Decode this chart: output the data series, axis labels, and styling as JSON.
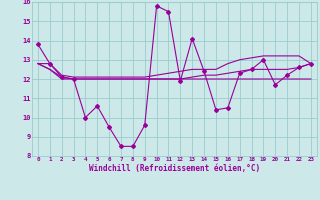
{
  "xlabel": "Windchill (Refroidissement éolien,°C)",
  "background_color": "#cce8e8",
  "grid_color": "#99cccc",
  "line_color": "#990099",
  "x": [
    0,
    1,
    2,
    3,
    4,
    5,
    6,
    7,
    8,
    9,
    10,
    11,
    12,
    13,
    14,
    15,
    16,
    17,
    18,
    19,
    20,
    21,
    22,
    23
  ],
  "y_main": [
    13.8,
    12.8,
    12.1,
    12.0,
    10.0,
    10.6,
    9.5,
    8.5,
    8.5,
    9.6,
    15.8,
    15.5,
    11.9,
    14.1,
    12.4,
    10.4,
    10.5,
    12.3,
    12.5,
    13.0,
    11.7,
    12.2,
    12.6,
    12.8
  ],
  "y_line1": [
    12.8,
    12.8,
    12.2,
    12.1,
    12.1,
    12.1,
    12.1,
    12.1,
    12.1,
    12.1,
    12.2,
    12.3,
    12.4,
    12.5,
    12.5,
    12.5,
    12.8,
    13.0,
    13.1,
    13.2,
    13.2,
    13.2,
    13.2,
    12.8
  ],
  "y_line2": [
    12.8,
    12.5,
    12.1,
    12.0,
    12.0,
    12.0,
    12.0,
    12.0,
    12.0,
    12.0,
    12.0,
    12.0,
    12.0,
    12.1,
    12.2,
    12.2,
    12.3,
    12.4,
    12.5,
    12.5,
    12.5,
    12.5,
    12.6,
    12.8
  ],
  "y_line3": [
    12.8,
    12.5,
    12.0,
    12.0,
    12.0,
    12.0,
    12.0,
    12.0,
    12.0,
    12.0,
    12.0,
    12.0,
    12.0,
    12.0,
    12.0,
    12.0,
    12.0,
    12.0,
    12.0,
    12.0,
    12.0,
    12.0,
    12.0,
    12.0
  ],
  "ylim": [
    8,
    16
  ],
  "xlim": [
    -0.5,
    23.5
  ],
  "yticks": [
    8,
    9,
    10,
    11,
    12,
    13,
    14,
    15,
    16
  ],
  "xticks": [
    0,
    1,
    2,
    3,
    4,
    5,
    6,
    7,
    8,
    9,
    10,
    11,
    12,
    13,
    14,
    15,
    16,
    17,
    18,
    19,
    20,
    21,
    22,
    23
  ]
}
